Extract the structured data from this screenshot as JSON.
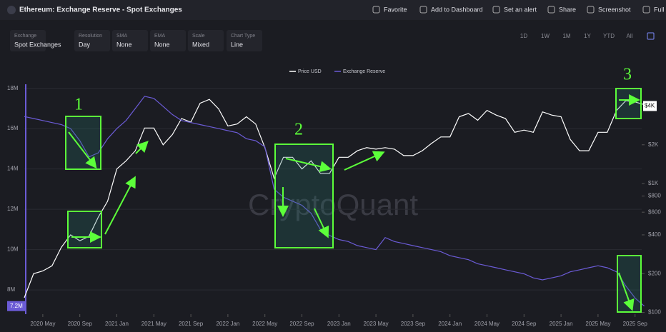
{
  "header": {
    "title": "Ethereum: Exchange Reserve - Spot Exchanges",
    "actions": [
      "Favorite",
      "Add to Dashboard",
      "Set an alert",
      "Share",
      "Screenshot",
      "Full"
    ]
  },
  "toolbar": {
    "controls": [
      {
        "label": "Exchange",
        "value": "Spot Exchanges"
      },
      {
        "label": "Resolution",
        "value": "Day"
      },
      {
        "label": "SMA",
        "value": "None"
      },
      {
        "label": "EMA",
        "value": "None"
      },
      {
        "label": "Scale",
        "value": "Mixed"
      },
      {
        "label": "Chart Type",
        "value": "Line"
      }
    ],
    "ranges": [
      "1D",
      "1W",
      "1M",
      "1Y",
      "YTD",
      "All"
    ]
  },
  "chart_data": {
    "type": "line",
    "watermark": "CryptoQuant",
    "annotations": [
      "1",
      "2",
      "3"
    ],
    "x": [
      "2020 Mar",
      "2020 Apr",
      "2020 May",
      "2020 Jun",
      "2020 Jul",
      "2020 Aug",
      "2020 Sep",
      "2020 Oct",
      "2020 Nov",
      "2020 Dec",
      "2021 Jan",
      "2021 Feb",
      "2021 Mar",
      "2021 Apr",
      "2021 May",
      "2021 Jun",
      "2021 Jul",
      "2021 Aug",
      "2021 Sep",
      "2021 Oct",
      "2021 Nov",
      "2021 Dec",
      "2022 Jan",
      "2022 Feb",
      "2022 Mar",
      "2022 Apr",
      "2022 May",
      "2022 Jun",
      "2022 Jul",
      "2022 Aug",
      "2022 Sep",
      "2022 Oct",
      "2022 Nov",
      "2022 Dec",
      "2023 Jan",
      "2023 Feb",
      "2023 Mar",
      "2023 Apr",
      "2023 May",
      "2023 Jun",
      "2023 Jul",
      "2023 Aug",
      "2023 Sep",
      "2023 Oct",
      "2023 Nov",
      "2023 Dec",
      "2024 Jan",
      "2024 Feb",
      "2024 Mar",
      "2024 Apr",
      "2024 May",
      "2024 Jun",
      "2024 Jul",
      "2024 Aug",
      "2024 Sep",
      "2024 Oct",
      "2024 Nov",
      "2024 Dec",
      "2025 Jan",
      "2025 Feb",
      "2025 Mar",
      "2025 Apr",
      "2025 May",
      "2025 Jun",
      "2025 Jul",
      "2025 Aug",
      "2025 Sep",
      "2025 Oct"
    ],
    "xticks": [
      "2020 May",
      "2020 Sep",
      "2021 Jan",
      "2021 May",
      "2021 Sep",
      "2022 Jan",
      "2022 May",
      "2022 Sep",
      "2023 Jan",
      "2023 May",
      "2023 Sep",
      "2024 Jan",
      "2024 May",
      "2024 Sep",
      "2025 Jan",
      "2025 May",
      "2025 Sep"
    ],
    "series": [
      {
        "name": "Price USD",
        "color": "#ffffff",
        "axis": "y2",
        "values": [
          130,
          200,
          210,
          230,
          320,
          400,
          360,
          390,
          550,
          730,
          1300,
          1500,
          1800,
          2700,
          2700,
          2000,
          2400,
          3200,
          3000,
          4200,
          4500,
          3800,
          2800,
          2900,
          3300,
          2900,
          1900,
          1100,
          1600,
          1600,
          1300,
          1500,
          1200,
          1200,
          1600,
          1600,
          1800,
          1900,
          1850,
          1900,
          1850,
          1650,
          1650,
          1800,
          2050,
          2300,
          2300,
          3300,
          3500,
          3100,
          3700,
          3400,
          3200,
          2500,
          2600,
          2500,
          3600,
          3400,
          3300,
          2200,
          1800,
          1800,
          2500,
          2500,
          3700,
          4400,
          4300,
          4100
        ]
      },
      {
        "name": "Exchange Reserve",
        "color": "#6b5bd6",
        "values": [
          16600000,
          16500000,
          16400000,
          16300000,
          16200000,
          16000000,
          15400000,
          14600000,
          14800000,
          15500000,
          16000000,
          16400000,
          17000000,
          17600000,
          17500000,
          17100000,
          16700000,
          16400000,
          16300000,
          16200000,
          16100000,
          16000000,
          15900000,
          15800000,
          15500000,
          15400000,
          15100000,
          13000000,
          12600000,
          12400000,
          12200000,
          11800000,
          11000000,
          10700000,
          10500000,
          10400000,
          10200000,
          10100000,
          10000000,
          10600000,
          10400000,
          10300000,
          10200000,
          10100000,
          10000000,
          9900000,
          9700000,
          9600000,
          9500000,
          9300000,
          9200000,
          9100000,
          9000000,
          8900000,
          8800000,
          8600000,
          8500000,
          8600000,
          8700000,
          8900000,
          9000000,
          9100000,
          9200000,
          9100000,
          8900000,
          8200000,
          7600000,
          7200000
        ]
      }
    ],
    "ylim": [
      6800000,
      18200000
    ],
    "yticks": [
      {
        "value": 8000000,
        "label": "8M"
      },
      {
        "value": 10000000,
        "label": "10M"
      },
      {
        "value": 12000000,
        "label": "12M"
      },
      {
        "value": 14000000,
        "label": "14M"
      },
      {
        "value": 16000000,
        "label": "16M"
      },
      {
        "value": 18000000,
        "label": "18M"
      }
    ],
    "y2lim": [
      97,
      5900
    ],
    "y2log": true,
    "y2ticks": [
      {
        "value": 100,
        "label": "$100"
      },
      {
        "value": 200,
        "label": "$200"
      },
      {
        "value": 400,
        "label": "$400"
      },
      {
        "value": 600,
        "label": "$600"
      },
      {
        "value": 800,
        "label": "$800"
      },
      {
        "value": 1000,
        "label": "$1K"
      },
      {
        "value": 2000,
        "label": "$2K"
      }
    ],
    "reserve_badge": {
      "value": 7200000,
      "label": "7.2M"
    },
    "price_badge": {
      "value": 4000,
      "label": "$4K"
    },
    "grid": true
  }
}
